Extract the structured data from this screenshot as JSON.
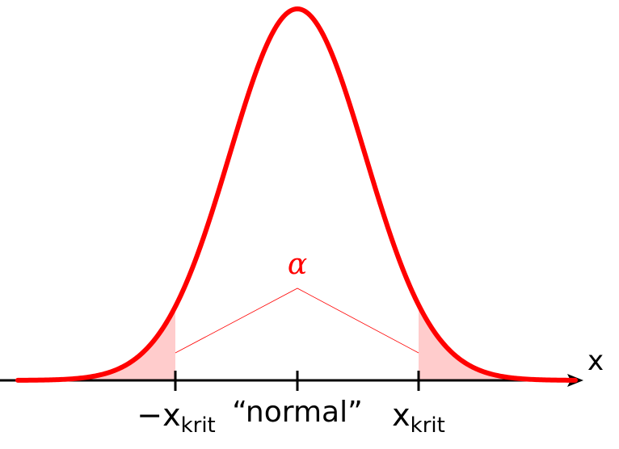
{
  "labels": {
    "axis_variable": "x",
    "left_critical_sign": "−",
    "left_critical_main": "x",
    "left_critical_sub": "krit",
    "center": "“normal”",
    "right_critical_main": "x",
    "right_critical_sub": "krit",
    "alpha": "α"
  },
  "colors": {
    "curve": "#ff0000",
    "tail_fill": "#ffcccc",
    "annotation": "#ff0000",
    "axis": "#000000"
  }
}
